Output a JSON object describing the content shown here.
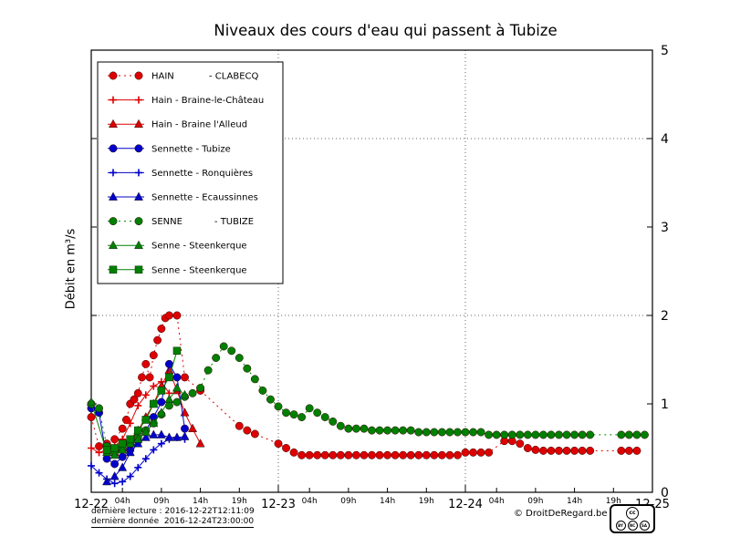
{
  "title": "Niveaux des cours d'eau qui passent à Tubize",
  "footer": {
    "last_read": "dernière lecture : 2016-12-22T12:11:09",
    "last_data": "dernière donnée  2016-12-24T23:00:00",
    "copyright": "© DroitDeRegard.be",
    "cc_badge": {
      "logo": "cc",
      "terms": [
        "BY",
        "NC",
        "SA"
      ]
    }
  },
  "chart_data": {
    "type": "line",
    "title": "Niveaux des cours d'eau qui passent à Tubize",
    "xlabel": "",
    "ylabel": "Débit en m³/s",
    "xlim_hours": [
      0,
      72
    ],
    "ylim": [
      0,
      5
    ],
    "y_ticks": [
      0,
      1,
      2,
      3,
      4,
      5
    ],
    "x_day_ticks": [
      {
        "hour": 0,
        "label": "12-22"
      },
      {
        "hour": 24,
        "label": "12-23"
      },
      {
        "hour": 48,
        "label": "12-24"
      },
      {
        "hour": 72,
        "label": "12-25"
      }
    ],
    "x_hour_ticks": [
      {
        "hour": 4,
        "label": "04h"
      },
      {
        "hour": 9,
        "label": "09h"
      },
      {
        "hour": 14,
        "label": "14h"
      },
      {
        "hour": 19,
        "label": "19h"
      },
      {
        "hour": 28,
        "label": "04h"
      },
      {
        "hour": 33,
        "label": "09h"
      },
      {
        "hour": 38,
        "label": "14h"
      },
      {
        "hour": 43,
        "label": "19h"
      },
      {
        "hour": 52,
        "label": "04h"
      },
      {
        "hour": 57,
        "label": "09h"
      },
      {
        "hour": 62,
        "label": "14h"
      },
      {
        "hour": 67,
        "label": "19h"
      }
    ],
    "grid_v_hours": [
      24,
      48
    ],
    "grid_h_values": [
      2,
      4
    ],
    "legend_position": "upper left",
    "series": [
      {
        "name": "HAIN            - CLABECQ",
        "color": "#dd0000",
        "marker": "circle",
        "dash": "2,4",
        "points": [
          [
            0,
            0.85
          ],
          [
            1,
            0.52
          ],
          [
            2,
            0.55
          ],
          [
            3,
            0.6
          ],
          [
            4,
            0.72
          ],
          [
            4.5,
            0.82
          ],
          [
            5,
            1.0
          ],
          [
            5.5,
            1.05
          ],
          [
            6,
            1.12
          ],
          [
            6.5,
            1.3
          ],
          [
            7,
            1.45
          ],
          [
            7.5,
            1.3
          ],
          [
            8,
            1.55
          ],
          [
            8.5,
            1.72
          ],
          [
            9,
            1.85
          ],
          [
            9.5,
            1.97
          ],
          [
            10,
            2.0
          ],
          [
            11,
            2.0
          ],
          [
            12,
            1.3
          ],
          [
            14,
            1.15
          ],
          [
            19,
            0.75
          ],
          [
            20,
            0.7
          ],
          [
            21,
            0.66
          ],
          [
            24,
            0.55
          ],
          [
            25,
            0.5
          ],
          [
            26,
            0.45
          ],
          [
            27,
            0.42
          ],
          [
            28,
            0.42
          ],
          [
            29,
            0.42
          ],
          [
            30,
            0.42
          ],
          [
            31,
            0.42
          ],
          [
            32,
            0.42
          ],
          [
            33,
            0.42
          ],
          [
            34,
            0.42
          ],
          [
            35,
            0.42
          ],
          [
            36,
            0.42
          ],
          [
            37,
            0.42
          ],
          [
            38,
            0.42
          ],
          [
            39,
            0.42
          ],
          [
            40,
            0.42
          ],
          [
            41,
            0.42
          ],
          [
            42,
            0.42
          ],
          [
            43,
            0.42
          ],
          [
            44,
            0.42
          ],
          [
            45,
            0.42
          ],
          [
            46,
            0.42
          ],
          [
            47,
            0.42
          ],
          [
            48,
            0.45
          ],
          [
            49,
            0.45
          ],
          [
            50,
            0.45
          ],
          [
            51,
            0.45
          ],
          [
            53,
            0.58
          ],
          [
            54,
            0.58
          ],
          [
            55,
            0.55
          ],
          [
            56,
            0.5
          ],
          [
            57,
            0.48
          ],
          [
            58,
            0.47
          ],
          [
            59,
            0.47
          ],
          [
            60,
            0.47
          ],
          [
            61,
            0.47
          ],
          [
            62,
            0.47
          ],
          [
            63,
            0.47
          ],
          [
            64,
            0.47
          ],
          [
            68,
            0.47
          ],
          [
            69,
            0.47
          ],
          [
            70,
            0.47
          ]
        ]
      },
      {
        "name": "Hain - Braine-le-Château",
        "color": "#dd0000",
        "marker": "plus",
        "dash": "",
        "points": [
          [
            0,
            0.5
          ],
          [
            1,
            0.45
          ],
          [
            2,
            0.48
          ],
          [
            3,
            0.52
          ],
          [
            4,
            0.6
          ],
          [
            5,
            0.78
          ],
          [
            6,
            0.98
          ],
          [
            7,
            1.1
          ],
          [
            8,
            1.2
          ],
          [
            9,
            1.25
          ],
          [
            10,
            1.12
          ]
        ]
      },
      {
        "name": "Hain - Braine l'Alleud",
        "color": "#dd0000",
        "marker": "triangle",
        "dash": "",
        "points": [
          [
            3,
            0.45
          ],
          [
            4,
            0.5
          ],
          [
            5,
            0.58
          ],
          [
            6,
            0.7
          ],
          [
            7,
            0.85
          ],
          [
            8,
            1.0
          ],
          [
            9,
            1.2
          ],
          [
            10,
            1.38
          ],
          [
            11,
            1.15
          ],
          [
            12,
            0.9
          ],
          [
            13,
            0.72
          ],
          [
            14,
            0.55
          ]
        ]
      },
      {
        "name": "Sennette - Tubize",
        "color": "#0000cc",
        "marker": "circle",
        "dash": "",
        "points": [
          [
            0,
            0.95
          ],
          [
            1,
            0.9
          ],
          [
            2,
            0.38
          ],
          [
            3,
            0.32
          ],
          [
            4,
            0.4
          ],
          [
            5,
            0.48
          ],
          [
            6,
            0.58
          ],
          [
            7,
            0.7
          ],
          [
            8,
            0.85
          ],
          [
            9,
            1.02
          ],
          [
            10,
            1.45
          ],
          [
            11,
            1.3
          ],
          [
            12,
            0.72
          ]
        ]
      },
      {
        "name": "Sennette - Ronquières",
        "color": "#0000cc",
        "marker": "plus",
        "dash": "",
        "points": [
          [
            0,
            0.3
          ],
          [
            1,
            0.22
          ],
          [
            2,
            0.15
          ],
          [
            3,
            0.1
          ],
          [
            4,
            0.12
          ],
          [
            5,
            0.18
          ],
          [
            6,
            0.28
          ],
          [
            7,
            0.38
          ],
          [
            8,
            0.48
          ],
          [
            9,
            0.55
          ],
          [
            10,
            0.6
          ],
          [
            11,
            0.62
          ],
          [
            12,
            0.6
          ]
        ]
      },
      {
        "name": "Sennette - Ecaussinnes",
        "color": "#0000cc",
        "marker": "triangle",
        "dash": "",
        "points": [
          [
            2,
            0.12
          ],
          [
            3,
            0.18
          ],
          [
            4,
            0.28
          ],
          [
            5,
            0.45
          ],
          [
            6,
            0.55
          ],
          [
            7,
            0.62
          ],
          [
            8,
            0.65
          ],
          [
            9,
            0.65
          ],
          [
            10,
            0.62
          ],
          [
            11,
            0.62
          ],
          [
            12,
            0.63
          ]
        ]
      },
      {
        "name": "SENNE           - TUBIZE",
        "color": "#008000",
        "marker": "circle",
        "dash": "2,4",
        "points": [
          [
            0,
            1.0
          ],
          [
            1,
            0.95
          ],
          [
            2,
            0.52
          ],
          [
            3,
            0.45
          ],
          [
            4,
            0.5
          ],
          [
            5,
            0.55
          ],
          [
            6,
            0.62
          ],
          [
            7,
            0.7
          ],
          [
            8,
            0.78
          ],
          [
            9,
            0.88
          ],
          [
            10,
            0.98
          ],
          [
            11,
            1.02
          ],
          [
            12,
            1.08
          ],
          [
            13,
            1.12
          ],
          [
            14,
            1.18
          ],
          [
            15,
            1.38
          ],
          [
            16,
            1.52
          ],
          [
            17,
            1.65
          ],
          [
            18,
            1.6
          ],
          [
            19,
            1.52
          ],
          [
            20,
            1.4
          ],
          [
            21,
            1.28
          ],
          [
            22,
            1.15
          ],
          [
            23,
            1.05
          ],
          [
            24,
            0.97
          ],
          [
            25,
            0.9
          ],
          [
            26,
            0.88
          ],
          [
            27,
            0.85
          ],
          [
            28,
            0.95
          ],
          [
            29,
            0.9
          ],
          [
            30,
            0.85
          ],
          [
            31,
            0.8
          ],
          [
            32,
            0.75
          ],
          [
            33,
            0.72
          ],
          [
            34,
            0.72
          ],
          [
            35,
            0.72
          ],
          [
            36,
            0.7
          ],
          [
            37,
            0.7
          ],
          [
            38,
            0.7
          ],
          [
            39,
            0.7
          ],
          [
            40,
            0.7
          ],
          [
            41,
            0.7
          ],
          [
            42,
            0.68
          ],
          [
            43,
            0.68
          ],
          [
            44,
            0.68
          ],
          [
            45,
            0.68
          ],
          [
            46,
            0.68
          ],
          [
            47,
            0.68
          ],
          [
            48,
            0.68
          ],
          [
            49,
            0.68
          ],
          [
            50,
            0.68
          ],
          [
            51,
            0.65
          ],
          [
            52,
            0.65
          ],
          [
            53,
            0.65
          ],
          [
            54,
            0.65
          ],
          [
            55,
            0.65
          ],
          [
            56,
            0.65
          ],
          [
            57,
            0.65
          ],
          [
            58,
            0.65
          ],
          [
            59,
            0.65
          ],
          [
            60,
            0.65
          ],
          [
            61,
            0.65
          ],
          [
            62,
            0.65
          ],
          [
            63,
            0.65
          ],
          [
            64,
            0.65
          ],
          [
            68,
            0.65
          ],
          [
            69,
            0.65
          ],
          [
            70,
            0.65
          ],
          [
            71,
            0.65
          ]
        ]
      },
      {
        "name": "Senne - Steenkerque",
        "color": "#008000",
        "marker": "triangle",
        "dash": "",
        "points": [
          [
            0,
            1.02
          ],
          [
            2,
            0.45
          ],
          [
            3,
            0.42
          ],
          [
            4,
            0.48
          ],
          [
            5,
            0.55
          ],
          [
            6,
            0.6
          ],
          [
            7,
            0.68
          ],
          [
            8,
            0.78
          ],
          [
            9,
            0.9
          ],
          [
            10,
            1.05
          ],
          [
            11,
            1.18
          ],
          [
            12,
            1.1
          ]
        ]
      },
      {
        "name": "Senne - Steenkerque",
        "color": "#008000",
        "marker": "square",
        "dash": "",
        "points": [
          [
            2,
            0.48
          ],
          [
            3,
            0.5
          ],
          [
            4,
            0.55
          ],
          [
            5,
            0.6
          ],
          [
            6,
            0.7
          ],
          [
            7,
            0.82
          ],
          [
            8,
            1.0
          ],
          [
            9,
            1.15
          ],
          [
            10,
            1.3
          ],
          [
            11,
            1.6
          ]
        ]
      }
    ]
  }
}
